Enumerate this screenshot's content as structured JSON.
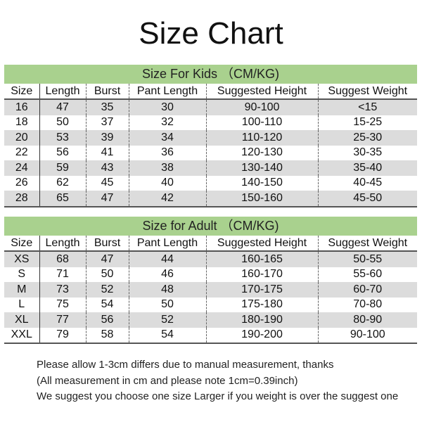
{
  "title": "Size Chart",
  "columns": [
    "Size",
    "Length",
    "Burst",
    "Pant Length",
    "Suggested Height",
    "Suggest Weight"
  ],
  "kids": {
    "heading": "Size For Kids （CM/KG)",
    "rows": [
      [
        "16",
        "47",
        "35",
        "30",
        "90-100",
        "<15"
      ],
      [
        "18",
        "50",
        "37",
        "32",
        "100-110",
        "15-25"
      ],
      [
        "20",
        "53",
        "39",
        "34",
        "110-120",
        "25-30"
      ],
      [
        "22",
        "56",
        "41",
        "36",
        "120-130",
        "30-35"
      ],
      [
        "24",
        "59",
        "43",
        "38",
        "130-140",
        "35-40"
      ],
      [
        "26",
        "62",
        "45",
        "40",
        "140-150",
        "40-45"
      ],
      [
        "28",
        "65",
        "47",
        "42",
        "150-160",
        "45-50"
      ]
    ]
  },
  "adult": {
    "heading": "Size for Adult （CM/KG)",
    "rows": [
      [
        "XS",
        "68",
        "47",
        "44",
        "160-165",
        "50-55"
      ],
      [
        "S",
        "71",
        "50",
        "46",
        "160-170",
        "55-60"
      ],
      [
        "M",
        "73",
        "52",
        "48",
        "170-175",
        "60-70"
      ],
      [
        "L",
        "75",
        "54",
        "50",
        "175-180",
        "70-80"
      ],
      [
        "XL",
        "77",
        "56",
        "52",
        "180-190",
        "80-90"
      ],
      [
        "XXL",
        "79",
        "58",
        "54",
        "190-200",
        "90-100"
      ]
    ]
  },
  "notes": [
    "Please allow 1-3cm differs due to manual measurement, thanks",
    "(All measurement in cm and please note 1cm=0.39inch)",
    "We suggest you choose one size Larger if you weight is over the suggest one"
  ],
  "colors": {
    "header_green": "#a9d18e",
    "row_gray": "#dcdcdc"
  }
}
